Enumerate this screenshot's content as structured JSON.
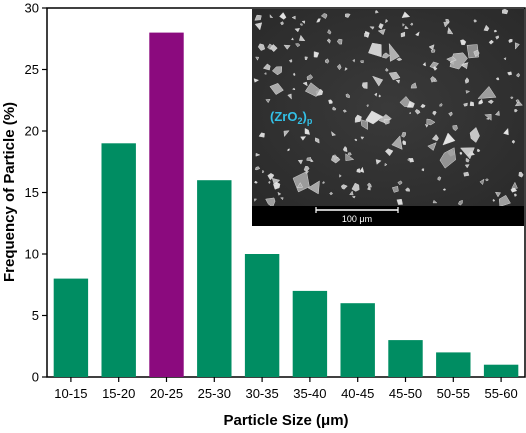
{
  "chart_data": {
    "type": "bar",
    "categories": [
      "10-15",
      "15-20",
      "20-25",
      "25-30",
      "30-35",
      "35-40",
      "40-45",
      "45-50",
      "50-55",
      "55-60"
    ],
    "values": [
      8,
      19,
      28,
      16,
      10,
      7,
      6,
      3,
      2,
      1
    ],
    "xlabel": "Particle Size (μm)",
    "ylabel": "Frequency of Particle (%)",
    "ylim": [
      0,
      30
    ],
    "yticks": [
      0,
      5,
      10,
      15,
      20,
      25,
      30
    ],
    "bar_color": "#008d62",
    "highlight_color": "#8b0a7e",
    "highlight_category": "20-25",
    "grid": false
  },
  "inset": {
    "sample_label_main": "(ZrO",
    "sample_label_sub2": "2",
    "sample_label_close": ")",
    "sample_label_subp": "p",
    "sample_label_color": "#33c0e6",
    "scale_bar_label": "100 μm"
  }
}
